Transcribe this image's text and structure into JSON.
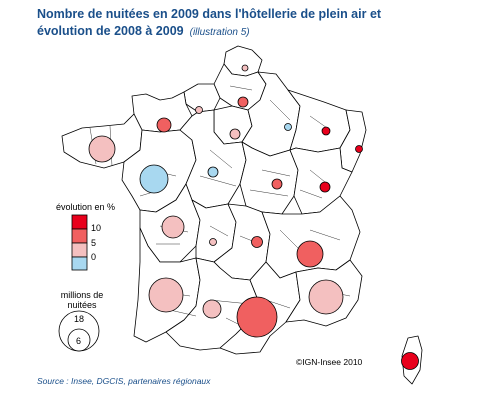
{
  "title_line1": "Nombre de nuitées en 2009 dans l'hôtellerie de plein air et",
  "title_line2": "évolution de 2008 à 2009",
  "title_note": "(illustration 5)",
  "legend_color": {
    "title": "évolution en %",
    "ticks": [
      "10",
      "5",
      "0"
    ],
    "colors": [
      "#e8001c",
      "#f06060",
      "#f4c0c0",
      "#a8d8f0"
    ]
  },
  "legend_size": {
    "title_line1": "millions de",
    "title_line2": "nuitées",
    "large": "18",
    "small": "6"
  },
  "credit": "©IGN-Insee 2010",
  "source": "Source : Insee, DGCIS, partenaires régionaux",
  "colors": {
    "border": "#000000",
    "title": "#1a4f8a",
    "high": "#e8001c",
    "medium_high": "#f06060",
    "medium": "#f4c0c0",
    "negative": "#a8d8f0"
  }
}
